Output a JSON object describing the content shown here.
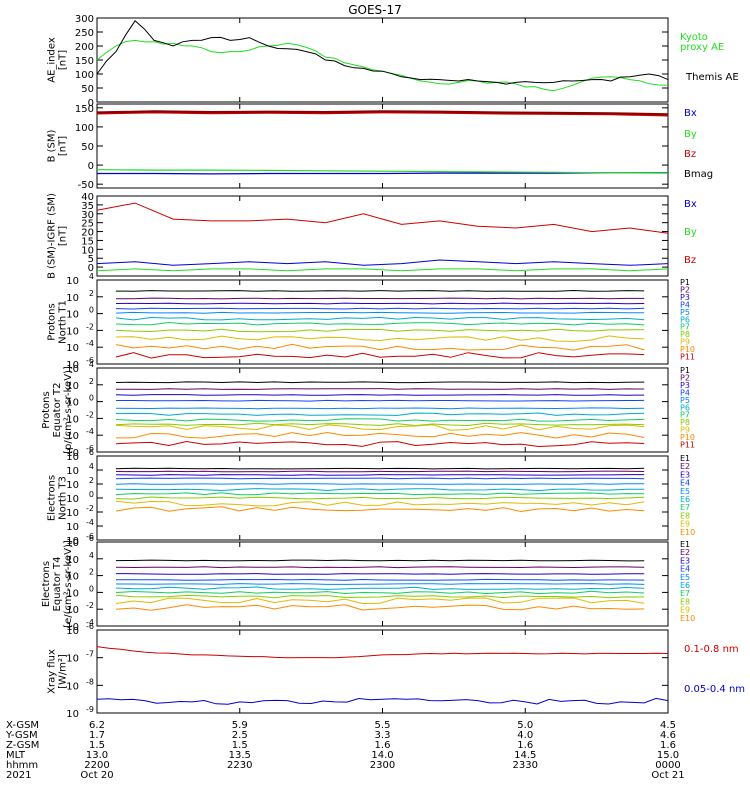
{
  "title": "GOES-17",
  "colors": {
    "black": "#000000",
    "green": "#22dd22",
    "blue": "#0000cc",
    "red": "#cc0000",
    "dark_red": "#880000",
    "protons": [
      "#000000",
      "#660066",
      "#2200cc",
      "#1144ff",
      "#0088ff",
      "#00aacc",
      "#11cc66",
      "#88cc00",
      "#ddbb00",
      "#ff8800",
      "#cc0000"
    ],
    "electrons": [
      "#000000",
      "#660066",
      "#2200cc",
      "#1144ff",
      "#0088ff",
      "#00aacc",
      "#11cc66",
      "#88cc00",
      "#ddbb00",
      "#ff8800",
      "#cc0000"
    ]
  },
  "chart_data": [
    {
      "type": "line",
      "panel": "ae",
      "ylabel": [
        "AE_index",
        "[nT]"
      ],
      "ylim": [
        0,
        300
      ],
      "yticks": [
        "0",
        "50",
        "100",
        "150",
        "200",
        "250",
        "300"
      ],
      "legend": [
        "Kyoto",
        "proxy AE",
        "Themis AE"
      ],
      "x": [
        0,
        2,
        4,
        6,
        8,
        10,
        12,
        14,
        16,
        18,
        20,
        22,
        24,
        26,
        28,
        30,
        32,
        34,
        36,
        38,
        40,
        42,
        44,
        46,
        48,
        50,
        52,
        54,
        56,
        58,
        60
      ],
      "series": [
        {
          "name": "Kyoto proxy AE",
          "color": "green",
          "values": [
            150,
            200,
            220,
            215,
            210,
            200,
            180,
            180,
            185,
            200,
            210,
            195,
            160,
            140,
            125,
            110,
            95,
            75,
            65,
            70,
            75,
            70,
            65,
            55,
            40,
            60,
            85,
            90,
            80,
            65,
            60
          ]
        },
        {
          "name": "Themis AE",
          "color": "black",
          "values": [
            100,
            180,
            290,
            220,
            200,
            220,
            230,
            220,
            230,
            200,
            190,
            180,
            150,
            130,
            120,
            110,
            90,
            80,
            80,
            75,
            75,
            70,
            70,
            70,
            70,
            75,
            80,
            75,
            90,
            100,
            80
          ]
        }
      ]
    },
    {
      "type": "line",
      "panel": "b_sm",
      "ylabel": [
        "B (SM)",
        "[nT]"
      ],
      "ylim": [
        -60,
        160
      ],
      "yticks": [
        "-50",
        "0",
        "50",
        "100",
        "150"
      ],
      "legend": [
        "Bx",
        "By",
        "Bz",
        "Bmag"
      ],
      "x": [
        0,
        6,
        12,
        18,
        24,
        30,
        36,
        42,
        48,
        54,
        60
      ],
      "series": [
        {
          "name": "Bx",
          "color": "blue",
          "values": [
            -22,
            -22,
            -23,
            -22,
            -22,
            -22,
            -21,
            -21,
            -21,
            -20,
            -20
          ]
        },
        {
          "name": "By",
          "color": "green",
          "values": [
            -12,
            -13,
            -13,
            -14,
            -15,
            -16,
            -17,
            -18,
            -19,
            -20,
            -21
          ]
        },
        {
          "name": "Bz",
          "color": "red",
          "values": [
            135,
            138,
            136,
            137,
            136,
            138,
            137,
            135,
            134,
            133,
            130
          ]
        },
        {
          "name": "Bmag",
          "color": "dark_red",
          "values": [
            138,
            141,
            139,
            140,
            139,
            141,
            140,
            138,
            137,
            136,
            133
          ]
        }
      ]
    },
    {
      "type": "line",
      "panel": "b_igrf",
      "ylabel": [
        "B (SM)-IGRF (SM)",
        "[nT]"
      ],
      "ylim": [
        -5,
        40
      ],
      "yticks": [
        "0",
        "5",
        "10",
        "15",
        "20",
        "25",
        "30",
        "35",
        "40"
      ],
      "legend": [
        "Bx",
        "By",
        "Bz"
      ],
      "x": [
        0,
        4,
        8,
        12,
        16,
        20,
        24,
        28,
        32,
        36,
        40,
        44,
        48,
        52,
        56,
        60
      ],
      "series": [
        {
          "name": "Bx",
          "color": "blue",
          "values": [
            2,
            3,
            1,
            2,
            3,
            2,
            3,
            1,
            2,
            4,
            3,
            2,
            3,
            2,
            1,
            2
          ]
        },
        {
          "name": "By",
          "color": "green",
          "values": [
            -2,
            -1,
            -2,
            -1,
            -1,
            -2,
            -1,
            -1,
            -2,
            -1,
            -1,
            -2,
            -1,
            -1,
            -2,
            -1
          ]
        },
        {
          "name": "Bz",
          "color": "red",
          "values": [
            32,
            36,
            27,
            26,
            26,
            27,
            25,
            30,
            24,
            26,
            23,
            22,
            24,
            20,
            22,
            19
          ]
        }
      ]
    },
    {
      "type": "line",
      "panel": "protons_t1",
      "ylabel": [
        "Protons",
        "North T1"
      ],
      "log": true,
      "ylim_exp": [
        -6,
        4
      ],
      "yticks": [
        "10^4",
        "10^2",
        "10^0",
        "10^-2",
        "10^-4",
        "10^-6"
      ],
      "legend": [
        "P1",
        "P2",
        "P3",
        "P4",
        "P5",
        "P6",
        "P7",
        "P8",
        "P9",
        "P10",
        "P11"
      ],
      "levels_exp": [
        2.7,
        1.8,
        1.2,
        0.6,
        0.1,
        -0.6,
        -1.2,
        -2.0,
        -3.0,
        -4.0,
        -5.0
      ]
    },
    {
      "type": "line",
      "panel": "protons_t2",
      "ylabel": [
        "Protons",
        "Equator T2",
        "[p/(cm²-s-sr-keV)]"
      ],
      "log": true,
      "ylim_exp": [
        -6,
        4
      ],
      "yticks": [
        "10^4",
        "10^2",
        "10^0",
        "10^-2",
        "10^-4",
        "10^-6"
      ],
      "legend": [
        "P1",
        "P2",
        "P3",
        "P4",
        "P5",
        "P6",
        "P7",
        "P8",
        "P9",
        "P10",
        "P11"
      ],
      "levels_exp": [
        2.3,
        1.5,
        0.8,
        0.1,
        -0.8,
        -1.5,
        -2.2,
        -2.7,
        -3.1,
        -4.0,
        -5.0
      ]
    },
    {
      "type": "line",
      "panel": "electrons_t3",
      "ylabel": [
        "Electrons",
        "North T3"
      ],
      "log": true,
      "ylim_exp": [
        -6,
        6
      ],
      "yticks": [
        "10^6",
        "10^4",
        "10^2",
        "10^0",
        "10^-2",
        "10^-4",
        "10^-6"
      ],
      "legend": [
        "E1",
        "E2",
        "E3",
        "E4",
        "E5",
        "E6",
        "E7",
        "E8",
        "E9",
        "E10"
      ],
      "levels_exp": [
        4.2,
        3.8,
        3.3,
        2.8,
        2.0,
        1.2,
        0.6,
        0.0,
        -0.8,
        -1.6
      ]
    },
    {
      "type": "line",
      "panel": "electrons_t4",
      "ylabel": [
        "Electrons",
        "Equator T4",
        "[e/(cm²-s-sr-keV)]"
      ],
      "log": true,
      "ylim_exp": [
        -4,
        6
      ],
      "yticks": [
        "10^6",
        "10^4",
        "10^2",
        "10^0",
        "10^-2",
        "10^-4"
      ],
      "legend": [
        "E1",
        "E2",
        "E3",
        "E4",
        "E5",
        "E6",
        "E7",
        "E8",
        "E9",
        "E10"
      ],
      "levels_exp": [
        3.8,
        3.0,
        2.2,
        1.5,
        1.0,
        0.5,
        0.0,
        -0.5,
        -1.0,
        -1.8
      ]
    },
    {
      "type": "line",
      "panel": "xray",
      "ylabel": [
        "Xray flux",
        "[W/m²]"
      ],
      "log": true,
      "ylim_exp": [
        -9,
        -6
      ],
      "yticks": [
        "10^-6",
        "10^-7",
        "10^-8",
        "10^-9"
      ],
      "legend": [
        "0.1-0.8 nm",
        "0.05-0.4 nm"
      ],
      "x": [
        0,
        5,
        10,
        15,
        20,
        25,
        30,
        35,
        40,
        45,
        50,
        55,
        60
      ],
      "series": [
        {
          "name": "0.1-0.8 nm",
          "color": "red",
          "values_exp": [
            -6.6,
            -6.8,
            -6.9,
            -6.95,
            -7.0,
            -7.0,
            -6.9,
            -6.85,
            -6.85,
            -6.85,
            -6.85,
            -6.85,
            -6.85
          ]
        },
        {
          "name": "0.05-0.4 nm",
          "color": "blue",
          "values_exp": [
            -8.5,
            -8.55,
            -8.6,
            -8.6,
            -8.55,
            -8.6,
            -8.5,
            -8.55,
            -8.55,
            -8.6,
            -8.55,
            -8.6,
            -8.55
          ]
        }
      ]
    }
  ],
  "time_axis": {
    "rows": [
      {
        "label": "X-GSM",
        "values": [
          "6.2",
          "5.9",
          "5.5",
          "5.0",
          "4.5"
        ]
      },
      {
        "label": "Y-GSM",
        "values": [
          "1.7",
          "2.5",
          "3.3",
          "4.0",
          "4.6"
        ]
      },
      {
        "label": "Z-GSM",
        "values": [
          "1.5",
          "1.5",
          "1.6",
          "1.6",
          "1.6"
        ]
      },
      {
        "label": "MLT",
        "values": [
          "13.0",
          "13.5",
          "14.0",
          "14.5",
          "15.0"
        ]
      },
      {
        "label": "hhmm",
        "values": [
          "2200",
          "2230",
          "2300",
          "2330",
          "0000"
        ]
      },
      {
        "label": "2021",
        "values": [
          "Oct 20",
          "",
          "",
          "",
          "Oct 21"
        ]
      }
    ]
  }
}
